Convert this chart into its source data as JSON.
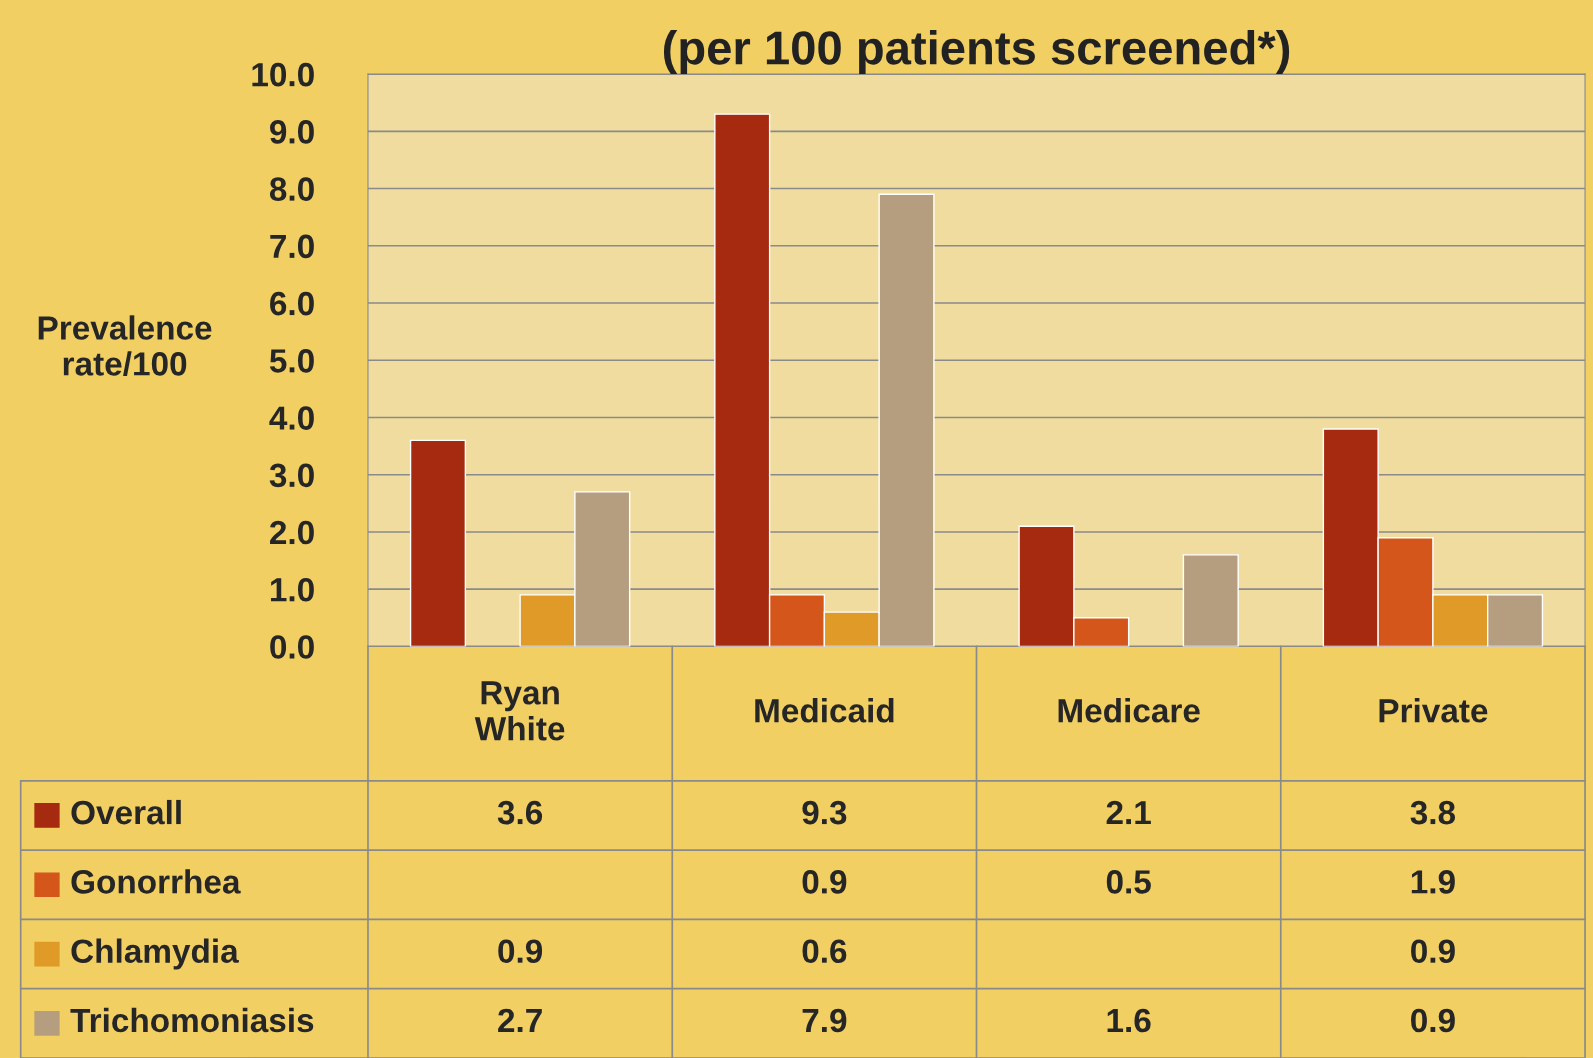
{
  "chart_data": {
    "type": "bar",
    "title": "(per 100 patients screened*)",
    "ylabel": "Prevalence rate/100",
    "categories": [
      "Ryan White",
      "Medicaid",
      "Medicare",
      "Private"
    ],
    "series": [
      {
        "name": "Overall",
        "color": "#a52a10",
        "values": [
          3.6,
          9.3,
          2.1,
          3.8
        ]
      },
      {
        "name": "Gonorrhea",
        "color": "#d4561a",
        "values": [
          null,
          0.9,
          0.5,
          1.9
        ]
      },
      {
        "name": "Chlamydia",
        "color": "#e09a28",
        "values": [
          0.9,
          0.6,
          null,
          0.9
        ]
      },
      {
        "name": "Trichomoniasis",
        "color": "#b59e80",
        "values": [
          2.7,
          7.9,
          1.6,
          0.9
        ]
      }
    ],
    "ylim": [
      0,
      10
    ],
    "yticks": [
      {
        "value": 0,
        "label": "0.0"
      },
      {
        "value": 1,
        "label": "1.0"
      },
      {
        "value": 2,
        "label": "2.0"
      },
      {
        "value": 3,
        "label": "3.0"
      },
      {
        "value": 4,
        "label": "4.0"
      },
      {
        "value": 5,
        "label": "5.0"
      },
      {
        "value": 6,
        "label": "6.0"
      },
      {
        "value": 7,
        "label": "7.0"
      },
      {
        "value": 8,
        "label": "8.0"
      },
      {
        "value": 9,
        "label": "9.0"
      },
      {
        "value": 10,
        "label": "10.0"
      }
    ],
    "grid": "y",
    "data_labels": true,
    "legend": "bottom left"
  }
}
